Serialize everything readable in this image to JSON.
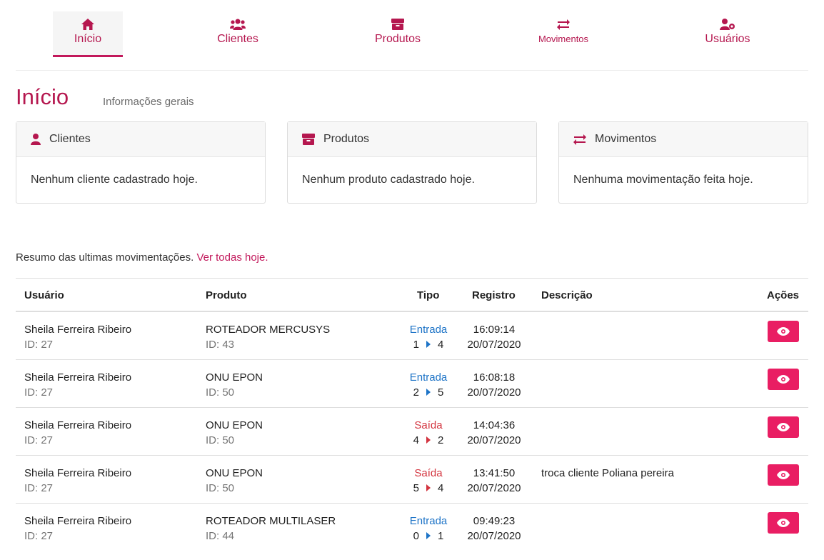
{
  "nav": {
    "items": [
      {
        "label": "Início",
        "icon": "home-icon",
        "active": true
      },
      {
        "label": "Clientes",
        "icon": "users-icon",
        "active": false
      },
      {
        "label": "Produtos",
        "icon": "box-icon",
        "active": false
      },
      {
        "label": "Movimentos",
        "icon": "exchange-icon",
        "active": false
      },
      {
        "label": "Usuários",
        "icon": "user-cog-icon",
        "active": false
      }
    ]
  },
  "page": {
    "title": "Início",
    "subtitle": "Informações gerais"
  },
  "cards": [
    {
      "title": "Clientes",
      "icon": "user-icon",
      "body": "Nenhum cliente cadastrado hoje."
    },
    {
      "title": "Produtos",
      "icon": "box-icon",
      "body": "Nenhum produto cadastrado hoje."
    },
    {
      "title": "Movimentos",
      "icon": "exchange-icon",
      "body": "Nenhuma movimentação feita hoje."
    }
  ],
  "summary": {
    "text": "Resumo das ultimas movimentações.",
    "link": "Ver todas hoje."
  },
  "table": {
    "headers": {
      "usuario": "Usuário",
      "produto": "Produto",
      "tipo": "Tipo",
      "registro": "Registro",
      "descricao": "Descrição",
      "acoes": "Ações"
    },
    "rows": [
      {
        "user": "Sheila Ferreira Ribeiro",
        "user_id": "ID: 27",
        "product": "ROTEADOR MERCUSYS",
        "product_id": "ID: 43",
        "tipo": "Entrada",
        "from": "1",
        "to": "4",
        "time": "16:09:14",
        "date": "20/07/2020",
        "desc": ""
      },
      {
        "user": "Sheila Ferreira Ribeiro",
        "user_id": "ID: 27",
        "product": "ONU EPON",
        "product_id": "ID: 50",
        "tipo": "Entrada",
        "from": "2",
        "to": "5",
        "time": "16:08:18",
        "date": "20/07/2020",
        "desc": ""
      },
      {
        "user": "Sheila Ferreira Ribeiro",
        "user_id": "ID: 27",
        "product": "ONU EPON",
        "product_id": "ID: 50",
        "tipo": "Saída",
        "from": "4",
        "to": "2",
        "time": "14:04:36",
        "date": "20/07/2020",
        "desc": ""
      },
      {
        "user": "Sheila Ferreira Ribeiro",
        "user_id": "ID: 27",
        "product": "ONU EPON",
        "product_id": "ID: 50",
        "tipo": "Saída",
        "from": "5",
        "to": "4",
        "time": "13:41:50",
        "date": "20/07/2020",
        "desc": "troca cliente Poliana pereira"
      },
      {
        "user": "Sheila Ferreira Ribeiro",
        "user_id": "ID: 27",
        "product": "ROTEADOR MULTILASER",
        "product_id": "ID: 44",
        "tipo": "Entrada",
        "from": "0",
        "to": "1",
        "time": "09:49:23",
        "date": "20/07/2020",
        "desc": ""
      }
    ]
  },
  "colors": {
    "brand": "#c2185b",
    "button": "#e91e63",
    "entrada": "#1e74c7",
    "saida": "#d3343f"
  }
}
